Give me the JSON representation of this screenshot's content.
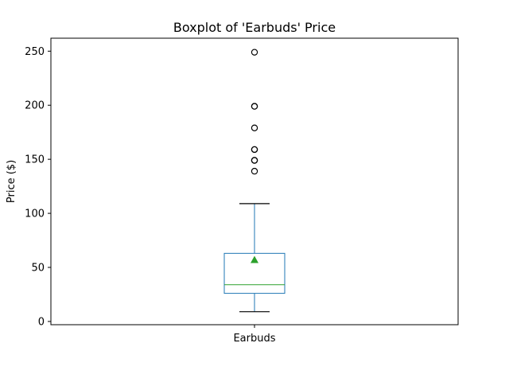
{
  "chart_data": {
    "type": "boxplot",
    "title": "Boxplot of 'Earbuds' Price",
    "xlabel": "",
    "ylabel": "Price ($)",
    "categories": [
      "Earbuds"
    ],
    "ylim": [
      -3,
      262
    ],
    "yticks": [
      0,
      50,
      100,
      150,
      200,
      250
    ],
    "boxes": [
      {
        "category": "Earbuds",
        "whisker_low": 9,
        "q1": 26,
        "median": 34,
        "q3": 63,
        "whisker_high": 109,
        "mean": 57,
        "outliers": [
          139,
          149,
          149,
          159,
          159,
          179,
          199,
          199,
          249
        ]
      }
    ],
    "grid": false,
    "colors": {
      "box": "#1f77b4",
      "median": "#2ca02c",
      "mean": "#2ca02c",
      "whisker_cap": "#000000",
      "outlier_edge": "#000000"
    }
  }
}
